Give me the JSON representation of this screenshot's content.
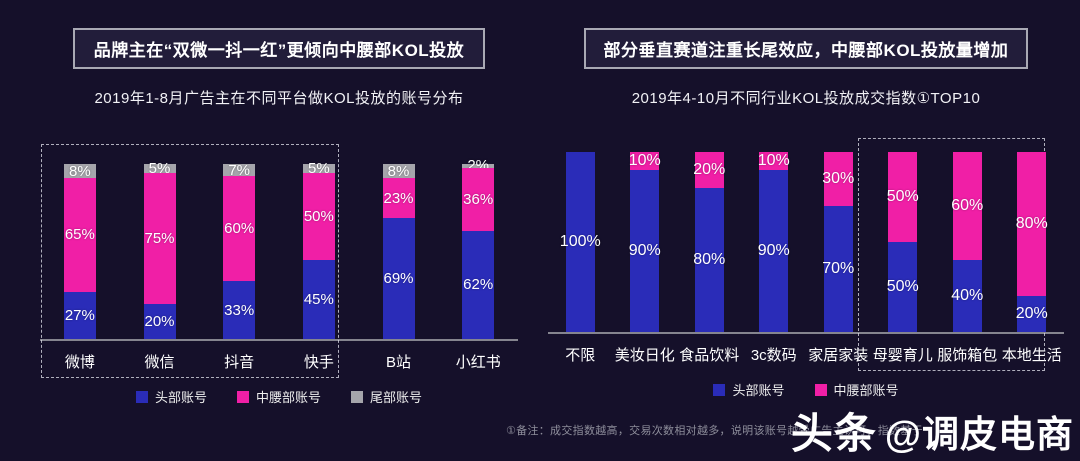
{
  "colors": {
    "background": "#15102a",
    "head_accounts": "#2a2cb8",
    "mid_accounts": "#f01fa6",
    "tail_accounts": "#a5a5ab",
    "axis": "#85858f"
  },
  "left_panel": {
    "header": "品牌主在“双微一抖一红”更倾向中腰部KOL投放",
    "subtitle": "2019年1-8月广告主在不同平台做KOL投放的账号分布"
  },
  "right_panel": {
    "header": "部分垂直赛道注重长尾效应，中腰部KOL投放量增加",
    "subtitle": "2019年4-10月不同行业KOL投放成交指数①TOP10"
  },
  "footnote": "①备注：成交指数越高，交易次数相对越多，说明该账号越受广告主认可，指数基于",
  "watermark": {
    "brand": "头条",
    "handle": "@调皮电商"
  },
  "chart_data": [
    {
      "type": "bar",
      "stacked": true,
      "unit": "%",
      "title": "2019年1-8月广告主在不同平台做KOL投放的账号分布",
      "categories": [
        "微博",
        "微信",
        "抖音",
        "快手",
        "B站",
        "小红书"
      ],
      "series": [
        {
          "name": "头部账号",
          "color": "#2a2cb8",
          "values": [
            27,
            20,
            33,
            45,
            69,
            62
          ]
        },
        {
          "name": "中腰部账号",
          "color": "#f01fa6",
          "values": [
            65,
            75,
            60,
            50,
            23,
            36
          ]
        },
        {
          "name": "尾部账号",
          "color": "#a5a5ab",
          "values": [
            8,
            5,
            7,
            5,
            8,
            2
          ]
        }
      ],
      "ylim": [
        0,
        100
      ],
      "grid": false,
      "legend_position": "bottom",
      "highlight_box_categories": [
        "微博",
        "微信",
        "抖音",
        "快手"
      ]
    },
    {
      "type": "bar",
      "stacked": true,
      "unit": "%",
      "title": "2019年4-10月不同行业KOL投放成交指数①TOP10",
      "categories": [
        "不限",
        "美妆日化",
        "食品饮料",
        "3c数码",
        "家居家装",
        "母婴育儿",
        "服饰箱包",
        "本地生活"
      ],
      "series": [
        {
          "name": "头部账号",
          "color": "#2a2cb8",
          "values": [
            100,
            90,
            80,
            90,
            70,
            50,
            40,
            20
          ]
        },
        {
          "name": "中腰部账号",
          "color": "#f01fa6",
          "values": [
            0,
            10,
            20,
            10,
            30,
            50,
            60,
            80
          ]
        }
      ],
      "ylim": [
        0,
        100
      ],
      "grid": false,
      "legend_position": "bottom",
      "highlight_box_categories": [
        "母婴育儿",
        "服饰箱包",
        "本地生活"
      ]
    }
  ]
}
